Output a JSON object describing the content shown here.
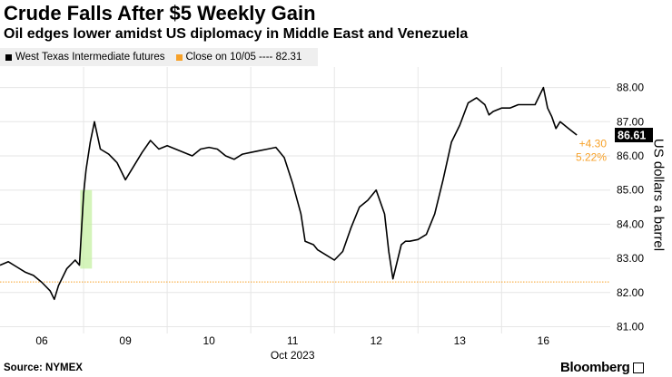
{
  "chart_data": {
    "type": "line",
    "title": "Crude Falls After $5 Weekly Gain",
    "subtitle": "Oil edges lower amidst US diplomacy in Middle East and Venezuela",
    "ylabel": "US dollars a barrel",
    "xlabel": "Oct 2023",
    "ylim": [
      80.8,
      88.6
    ],
    "y_ticks": [
      81.0,
      82.0,
      83.0,
      84.0,
      85.0,
      86.0,
      87.0,
      88.0
    ],
    "y_tick_labels": [
      "81.00",
      "82.00",
      "83.00",
      "84.00",
      "85.00",
      "86.00",
      "87.00",
      "88.00"
    ],
    "x_ticks": [
      0.5,
      1.5,
      2.5,
      3.5,
      4.5,
      5.5,
      6.5
    ],
    "x_tick_labels": [
      "06",
      "09",
      "10",
      "11",
      "12",
      "13",
      "16"
    ],
    "xlim": [
      0,
      7.3
    ],
    "legend_position": "top-left",
    "series": [
      {
        "name": "West Texas Intermediate futures",
        "color": "#000000",
        "x": [
          0,
          0.1,
          0.2,
          0.3,
          0.4,
          0.5,
          0.6,
          0.65,
          0.7,
          0.8,
          0.9,
          0.95,
          1.0,
          1.03,
          1.08,
          1.13,
          1.2,
          1.3,
          1.4,
          1.5,
          1.6,
          1.7,
          1.8,
          1.9,
          2.0,
          2.1,
          2.2,
          2.3,
          2.4,
          2.5,
          2.6,
          2.7,
          2.8,
          2.9,
          3.0,
          3.1,
          3.2,
          3.3,
          3.4,
          3.5,
          3.6,
          3.65,
          3.75,
          3.8,
          3.9,
          4.0,
          4.1,
          4.2,
          4.3,
          4.4,
          4.5,
          4.6,
          4.65,
          4.7,
          4.8,
          4.85,
          4.9,
          5.0,
          5.1,
          5.2,
          5.3,
          5.4,
          5.5,
          5.6,
          5.7,
          5.8,
          5.85,
          5.9,
          6.0,
          6.1,
          6.2,
          6.3,
          6.4,
          6.5,
          6.55,
          6.6,
          6.65,
          6.7,
          6.8,
          6.9
        ],
        "values": [
          82.8,
          82.9,
          82.75,
          82.6,
          82.5,
          82.3,
          82.05,
          81.8,
          82.2,
          82.7,
          82.95,
          82.8,
          84.9,
          85.6,
          86.4,
          87.0,
          86.2,
          86.05,
          85.8,
          85.3,
          85.7,
          86.1,
          86.45,
          86.2,
          86.3,
          86.2,
          86.1,
          86.0,
          86.2,
          86.25,
          86.2,
          86.0,
          85.9,
          86.05,
          86.1,
          86.15,
          86.2,
          86.25,
          85.95,
          85.2,
          84.3,
          83.5,
          83.4,
          83.25,
          83.1,
          82.95,
          83.2,
          83.9,
          84.5,
          84.7,
          85.0,
          84.3,
          83.2,
          82.4,
          83.4,
          83.5,
          83.5,
          83.55,
          83.7,
          84.3,
          85.3,
          86.4,
          86.9,
          87.55,
          87.7,
          87.5,
          87.2,
          87.3,
          87.4,
          87.4,
          87.5,
          87.5,
          87.5,
          88.0,
          87.4,
          87.15,
          86.8,
          87.0,
          86.8,
          86.61
        ]
      },
      {
        "name": "Close on 10/05 ---- 82.31",
        "color": "#f7a128",
        "value": 82.31
      }
    ],
    "annotations": {
      "last_value_label": "86.61",
      "change_abs": "+4.30",
      "change_pct": "5.22%",
      "highlight_color": "#c6f0a3"
    }
  },
  "source": "Source: NYMEX",
  "brand": "Bloomberg"
}
